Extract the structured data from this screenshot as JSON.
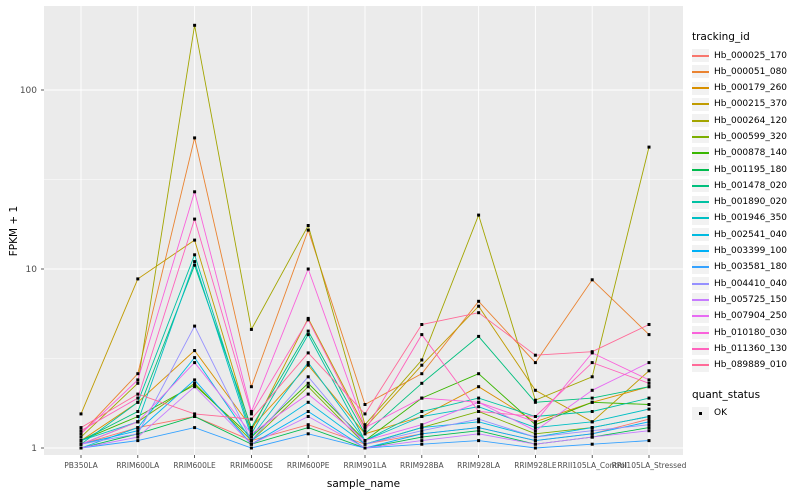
{
  "chart_data": {
    "type": "line",
    "title": "",
    "xlabel": "sample_name",
    "ylabel": "FPKM + 1",
    "yscale": "log10",
    "ylim": [
      0.93,
      294
    ],
    "grid": true,
    "legend_position": "right",
    "y_ticks": [
      {
        "label": "1",
        "value": 1
      },
      {
        "label": "10",
        "value": 10
      },
      {
        "label": "100",
        "value": 100
      }
    ],
    "y_minor_gridlines": [
      3.1623,
      31.623
    ],
    "marker": {
      "shape": "filled-square",
      "color": "#000000",
      "size": 3
    },
    "categories": [
      "PB350LA",
      "RRIM600LA",
      "RRIM600LE",
      "RRIM600SE",
      "RRIM600PE",
      "RRIM901LA",
      "RRIM928BA",
      "RRIM928LA",
      "RRIM928LE",
      "RRII105LA_Control",
      "RRII105LA_Stressed"
    ],
    "series": [
      {
        "name": "Hb_000025_170",
        "color": "#F8766D",
        "values": [
          1.05,
          1.3,
          1.5,
          1.1,
          1.35,
          1.05,
          1.2,
          1.3,
          1.1,
          1.2,
          1.45
        ]
      },
      {
        "name": "Hb_000051_080",
        "color": "#EA8331",
        "values": [
          1.2,
          2.6,
          54,
          2.2,
          16.5,
          1.75,
          2.6,
          6.6,
          3.0,
          8.7,
          4.3
        ]
      },
      {
        "name": "Hb_000179_260",
        "color": "#D89000",
        "values": [
          1.1,
          1.8,
          3.5,
          1.3,
          2.9,
          1.2,
          1.5,
          2.2,
          1.4,
          1.8,
          2.2
        ]
      },
      {
        "name": "Hb_000215_370",
        "color": "#C09B00",
        "values": [
          1.55,
          8.8,
          14.5,
          1.25,
          5.3,
          1.3,
          2.9,
          6.2,
          2.1,
          1.4,
          2.7
        ]
      },
      {
        "name": "Hb_000264_120",
        "color": "#A3A500",
        "values": [
          1.15,
          2.3,
          230,
          4.6,
          17.5,
          1.35,
          3.1,
          20,
          1.85,
          2.5,
          48
        ]
      },
      {
        "name": "Hb_000599_320",
        "color": "#7CAE00",
        "values": [
          1.05,
          1.4,
          2.3,
          1.1,
          2.2,
          1.05,
          1.3,
          1.6,
          1.2,
          1.3,
          1.5
        ]
      },
      {
        "name": "Hb_000878_140",
        "color": "#39B600",
        "values": [
          1.1,
          1.5,
          2.25,
          1.15,
          2.3,
          1.1,
          1.9,
          2.6,
          1.35,
          1.8,
          1.75
        ]
      },
      {
        "name": "Hb_001195_180",
        "color": "#00BB4E",
        "values": [
          1.0,
          1.2,
          1.5,
          1.05,
          1.3,
          1.0,
          1.15,
          1.25,
          1.05,
          1.15,
          1.3
        ]
      },
      {
        "name": "Hb_001478_020",
        "color": "#00BF7D",
        "values": [
          1.1,
          1.6,
          10.5,
          1.3,
          4.5,
          1.2,
          2.3,
          4.2,
          1.8,
          1.9,
          2.2
        ]
      },
      {
        "name": "Hb_001890_020",
        "color": "#00C1A3",
        "values": [
          1.05,
          1.8,
          12,
          1.2,
          4.3,
          1.1,
          1.6,
          1.9,
          1.5,
          1.6,
          1.9
        ]
      },
      {
        "name": "Hb_001946_350",
        "color": "#00BFC4",
        "values": [
          1.1,
          1.4,
          11,
          1.15,
          3.0,
          1.1,
          1.5,
          1.7,
          1.3,
          1.4,
          1.65
        ]
      },
      {
        "name": "Hb_002541_040",
        "color": "#00BAE0",
        "values": [
          1.0,
          1.3,
          3.2,
          1.1,
          1.8,
          1.05,
          1.3,
          1.4,
          1.15,
          1.3,
          1.5
        ]
      },
      {
        "name": "Hb_003399_100",
        "color": "#00B0F6",
        "values": [
          1.05,
          1.25,
          2.4,
          1.05,
          1.6,
          1.0,
          1.2,
          1.3,
          1.1,
          1.2,
          1.4
        ]
      },
      {
        "name": "Hb_003581_180",
        "color": "#35A2FF",
        "values": [
          1.0,
          1.1,
          1.3,
          1.0,
          1.2,
          1.0,
          1.05,
          1.1,
          1.0,
          1.05,
          1.1
        ]
      },
      {
        "name": "Hb_004410_040",
        "color": "#9590FF",
        "values": [
          1.05,
          1.2,
          4.8,
          1.1,
          2.5,
          1.05,
          1.25,
          1.45,
          1.15,
          1.25,
          1.35
        ]
      },
      {
        "name": "Hb_005725_150",
        "color": "#C77CFF",
        "values": [
          1.0,
          1.15,
          2.2,
          1.05,
          1.5,
          1.0,
          1.1,
          1.2,
          1.05,
          1.15,
          1.25
        ]
      },
      {
        "name": "Hb_007904_250",
        "color": "#E76BF3",
        "values": [
          1.05,
          1.4,
          3.0,
          1.2,
          2.0,
          1.1,
          1.35,
          1.8,
          1.25,
          2.1,
          3.0
        ]
      },
      {
        "name": "Hb_010180_030",
        "color": "#FA62DB",
        "values": [
          1.2,
          2.4,
          27,
          1.6,
          10,
          1.3,
          1.9,
          1.8,
          1.4,
          3.4,
          2.4
        ]
      },
      {
        "name": "Hb_011360_130",
        "color": "#FF62BC",
        "values": [
          1.25,
          1.9,
          19,
          1.55,
          5.2,
          1.25,
          4.3,
          1.6,
          1.5,
          3.0,
          2.3
        ]
      },
      {
        "name": "Hb_089889_010",
        "color": "#FF6A98",
        "values": [
          1.3,
          2.0,
          1.55,
          1.45,
          3.4,
          1.55,
          4.9,
          5.7,
          3.3,
          3.45,
          4.9
        ]
      }
    ]
  },
  "legend": {
    "color_legend_title": "tracking_id",
    "shape_legend_title": "quant_status",
    "shape_items": [
      {
        "label": "OK"
      }
    ]
  },
  "colors": {
    "panel_background": "#EBEBEB",
    "gridline": "#FFFFFF",
    "tick_mark": "#333333",
    "tick_text": "#4D4D4D",
    "legend_key_background": "#F2F2F2",
    "point": "#000000"
  }
}
